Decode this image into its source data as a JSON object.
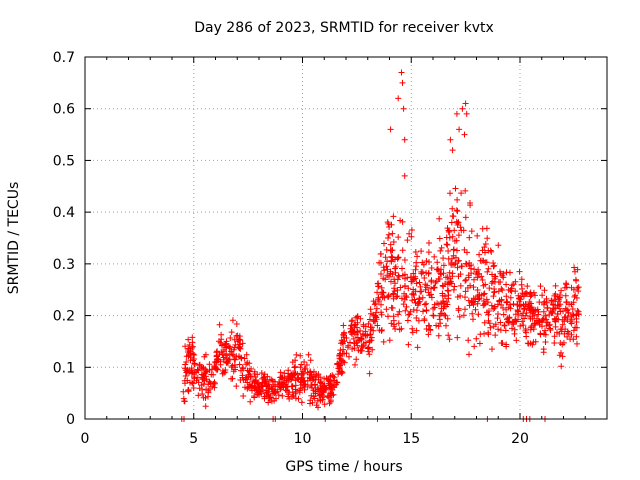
{
  "chart_data": {
    "type": "scatter",
    "title": "Day 286 of 2023, SRMTID for receiver kvtx",
    "xlabel": "GPS time / hours",
    "ylabel": "SRMTID / TECUs",
    "xlim": [
      0,
      24
    ],
    "ylim": [
      0,
      0.7
    ],
    "xticks": [
      0,
      5,
      10,
      15,
      20
    ],
    "yticks": [
      0,
      0.1,
      0.2,
      0.3,
      0.4,
      0.5,
      0.6,
      0.7
    ],
    "grid": true,
    "marker": "+",
    "color": "#ff0000",
    "envelope": [
      {
        "x": 4.5,
        "y": 0.06,
        "s": 0.03
      },
      {
        "x": 4.8,
        "y": 0.12,
        "s": 0.05
      },
      {
        "x": 5.2,
        "y": 0.08,
        "s": 0.03
      },
      {
        "x": 5.8,
        "y": 0.07,
        "s": 0.03
      },
      {
        "x": 6.2,
        "y": 0.13,
        "s": 0.03
      },
      {
        "x": 6.6,
        "y": 0.12,
        "s": 0.04
      },
      {
        "x": 7.0,
        "y": 0.12,
        "s": 0.04
      },
      {
        "x": 7.5,
        "y": 0.08,
        "s": 0.03
      },
      {
        "x": 8.0,
        "y": 0.06,
        "s": 0.02
      },
      {
        "x": 8.6,
        "y": 0.05,
        "s": 0.02
      },
      {
        "x": 9.2,
        "y": 0.07,
        "s": 0.02
      },
      {
        "x": 9.8,
        "y": 0.08,
        "s": 0.03
      },
      {
        "x": 10.4,
        "y": 0.07,
        "s": 0.03
      },
      {
        "x": 10.9,
        "y": 0.05,
        "s": 0.02
      },
      {
        "x": 11.5,
        "y": 0.07,
        "s": 0.02
      },
      {
        "x": 11.9,
        "y": 0.14,
        "s": 0.03
      },
      {
        "x": 12.4,
        "y": 0.16,
        "s": 0.03
      },
      {
        "x": 13.0,
        "y": 0.14,
        "s": 0.03
      },
      {
        "x": 13.5,
        "y": 0.24,
        "s": 0.05
      },
      {
        "x": 14.0,
        "y": 0.3,
        "s": 0.08
      },
      {
        "x": 14.5,
        "y": 0.27,
        "s": 0.09
      },
      {
        "x": 15.0,
        "y": 0.26,
        "s": 0.06
      },
      {
        "x": 15.5,
        "y": 0.24,
        "s": 0.07
      },
      {
        "x": 16.0,
        "y": 0.24,
        "s": 0.06
      },
      {
        "x": 16.5,
        "y": 0.26,
        "s": 0.07
      },
      {
        "x": 17.0,
        "y": 0.32,
        "s": 0.1
      },
      {
        "x": 17.5,
        "y": 0.28,
        "s": 0.09
      },
      {
        "x": 18.0,
        "y": 0.25,
        "s": 0.07
      },
      {
        "x": 18.5,
        "y": 0.26,
        "s": 0.07
      },
      {
        "x": 19.0,
        "y": 0.23,
        "s": 0.06
      },
      {
        "x": 19.5,
        "y": 0.2,
        "s": 0.05
      },
      {
        "x": 20.0,
        "y": 0.21,
        "s": 0.04
      },
      {
        "x": 20.5,
        "y": 0.2,
        "s": 0.04
      },
      {
        "x": 21.0,
        "y": 0.19,
        "s": 0.04
      },
      {
        "x": 21.5,
        "y": 0.2,
        "s": 0.04
      },
      {
        "x": 22.0,
        "y": 0.19,
        "s": 0.05
      },
      {
        "x": 22.7,
        "y": 0.22,
        "s": 0.05
      }
    ],
    "peaks": [
      {
        "x": 14.05,
        "y": 0.56
      },
      {
        "x": 14.4,
        "y": 0.62
      },
      {
        "x": 14.55,
        "y": 0.67
      },
      {
        "x": 14.6,
        "y": 0.65
      },
      {
        "x": 14.65,
        "y": 0.6
      },
      {
        "x": 14.7,
        "y": 0.54
      },
      {
        "x": 14.7,
        "y": 0.47
      },
      {
        "x": 16.8,
        "y": 0.54
      },
      {
        "x": 16.9,
        "y": 0.52
      },
      {
        "x": 17.1,
        "y": 0.59
      },
      {
        "x": 17.2,
        "y": 0.56
      },
      {
        "x": 17.35,
        "y": 0.6
      },
      {
        "x": 17.5,
        "y": 0.61
      },
      {
        "x": 17.55,
        "y": 0.59
      },
      {
        "x": 17.45,
        "y": 0.55
      }
    ],
    "zero_points": [
      4.45,
      4.55,
      8.65,
      8.75,
      11.05,
      13.45,
      18.5,
      20.15,
      20.3,
      20.45,
      21.15
    ]
  }
}
